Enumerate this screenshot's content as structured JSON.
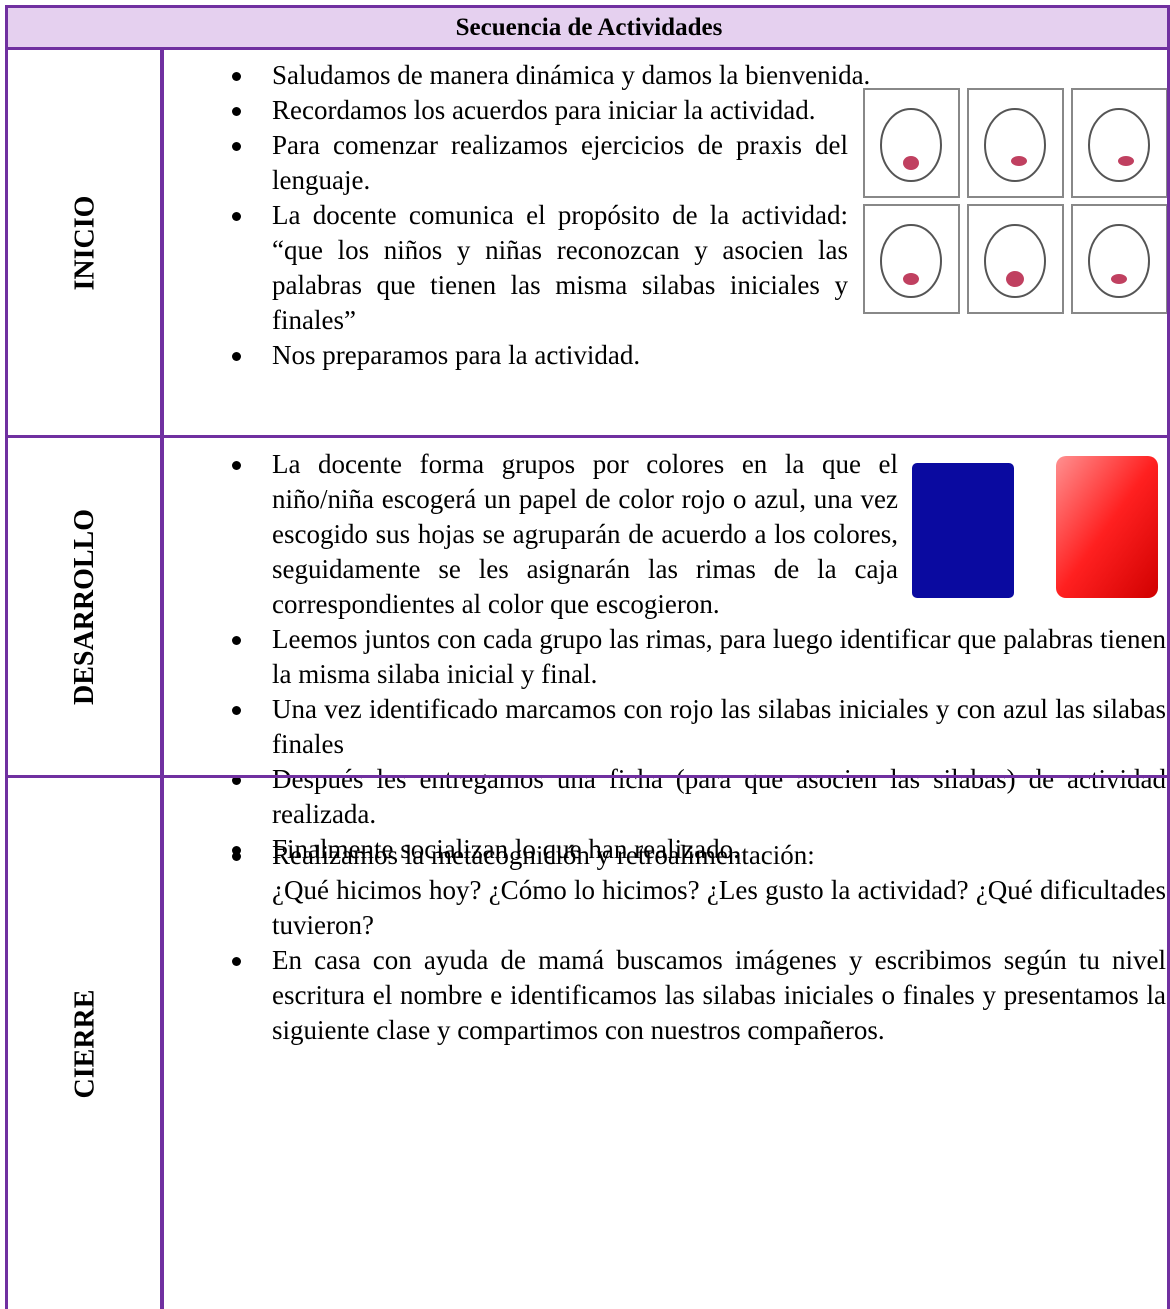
{
  "header": {
    "title": "Secuencia de Actividades"
  },
  "sections": [
    {
      "label": "INICIO",
      "items": [
        [
          "Saludamos de manera dinámica y damos la bienvenida."
        ],
        [
          "Recordamos los acuerdos para iniciar la actividad."
        ],
        [
          "Para comenzar realizamos ejercicios de praxis del lenguaje."
        ],
        [
          "La docente comunica el propósito de la actividad: “que los niños y niñas reconozcan y asocien las palabras que tienen las misma silabas iniciales y finales”"
        ],
        [
          "Nos preparamos para la actividad."
        ]
      ]
    },
    {
      "label": "DESARROLLO",
      "items": [
        [
          "La docente forma grupos por colores en la que el niño/niña escogerá un papel de color rojo o azul, una vez escogido sus hojas se agruparán de acuerdo a los colores, seguidamente se les asignarán las rimas de la caja correspondientes al color que escogieron."
        ],
        [
          "Leemos juntos con cada grupo las rimas, para luego identificar que palabras tienen la misma silaba inicial y final."
        ],
        [
          "Una vez identificado marcamos con rojo las silabas iniciales y con azul las silabas finales"
        ],
        [
          "Después les entregamos una ficha (para que asocien las silabas) de actividad realizada."
        ],
        [
          "Finalmente socializan lo que han realizado."
        ]
      ]
    },
    {
      "label": "CIERRE",
      "items": [
        [
          "Realizamos la metacognición y retroalimentación:",
          "¿Qué hicimos hoy? ¿Cómo lo hicimos? ¿Les gusto la actividad? ¿Qué dificultades tuvieron?"
        ],
        [
          "En casa con ayuda de mamá buscamos imágenes y escribimos según tu nivel escritura el nombre e identificamos las silabas iniciales o finales y presentamos la siguiente clase y compartimos con nuestros compañeros."
        ]
      ]
    }
  ]
}
